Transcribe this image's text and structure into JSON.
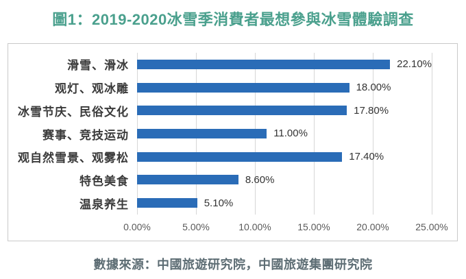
{
  "title": "圖1：2019-2020冰雪季消費者最想參與冰雪體驗調查",
  "source_note": "數據來源：中國旅遊研究院，中國旅遊集團研究院",
  "colors": {
    "title_text": "#4aa08d",
    "bar_fill": "#2a6cb7",
    "gridline": "#d6d6d6",
    "panel_border": "#c9c9c9",
    "category_text": "#3a3a3a",
    "value_text": "#333333",
    "axis_text": "#595959",
    "caption_text": "#5d6d74"
  },
  "chart_data": {
    "type": "bar",
    "orientation": "horizontal",
    "title": "圖1：2019-2020冰雪季消費者最想參與冰雪體驗調查",
    "categories": [
      "滑雪、滑冰",
      "观灯、观冰雕",
      "冰雪节庆、民俗文化",
      "赛事、竞技运动",
      "观自然雪景、观雾松",
      "特色美食",
      "温泉养生"
    ],
    "values": [
      22.1,
      18.0,
      17.8,
      11.0,
      17.4,
      8.6,
      5.1
    ],
    "value_labels": [
      "22.10%",
      "18.00%",
      "17.80%",
      "11.00%",
      "17.40%",
      "8.60%",
      "5.10%"
    ],
    "x_ticks": [
      "0.00%",
      "5.00%",
      "10.00%",
      "15.00%",
      "20.00%",
      "25.00%"
    ],
    "x_tick_values": [
      0,
      5,
      10,
      15,
      20,
      25
    ],
    "xlim": [
      0,
      25
    ],
    "xlabel": "",
    "ylabel": "",
    "grid": true,
    "legend": false
  }
}
